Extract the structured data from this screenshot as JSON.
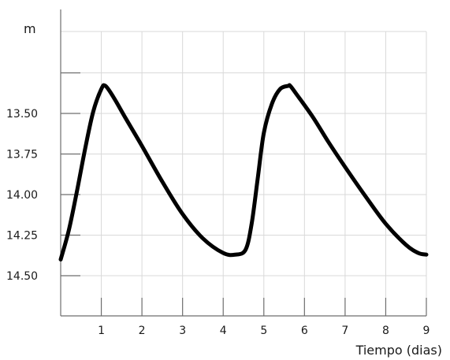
{
  "chart_data": {
    "type": "line",
    "title": "",
    "xlabel": "Tiempo (dias)",
    "ylabel": "m",
    "xlim": [
      0,
      9
    ],
    "ylim": [
      14.75,
      13.25
    ],
    "y_axis_inverted": true,
    "grid": true,
    "x_ticks": [
      1,
      2,
      3,
      4,
      5,
      6,
      7,
      8,
      9
    ],
    "x_tick_labels": [
      "1",
      "2",
      "3",
      "4",
      "5",
      "6",
      "7",
      "8",
      "9"
    ],
    "y_ticks": [
      13.5,
      13.75,
      14.0,
      14.25,
      14.5
    ],
    "y_tick_labels": [
      "13.50",
      "13.75",
      "14.00",
      "14.25",
      "14.50"
    ],
    "series": [
      {
        "color": "#000000",
        "x": [
          0,
          0.2,
          0.4,
          0.6,
          0.8,
          1.0,
          1.1,
          1.3,
          1.6,
          2.0,
          2.5,
          3.0,
          3.5,
          4.0,
          4.3,
          4.55,
          4.7,
          4.85,
          5.0,
          5.2,
          5.4,
          5.6,
          5.65,
          5.8,
          6.2,
          6.6,
          7.0,
          7.5,
          8.0,
          8.5,
          8.8,
          9.0
        ],
        "y": [
          14.4,
          14.22,
          13.98,
          13.72,
          13.49,
          13.35,
          13.33,
          13.4,
          13.53,
          13.7,
          13.92,
          14.12,
          14.27,
          14.36,
          14.37,
          14.34,
          14.18,
          13.9,
          13.62,
          13.44,
          13.35,
          13.33,
          13.33,
          13.38,
          13.52,
          13.68,
          13.83,
          14.01,
          14.18,
          14.31,
          14.36,
          14.37
        ]
      }
    ]
  }
}
